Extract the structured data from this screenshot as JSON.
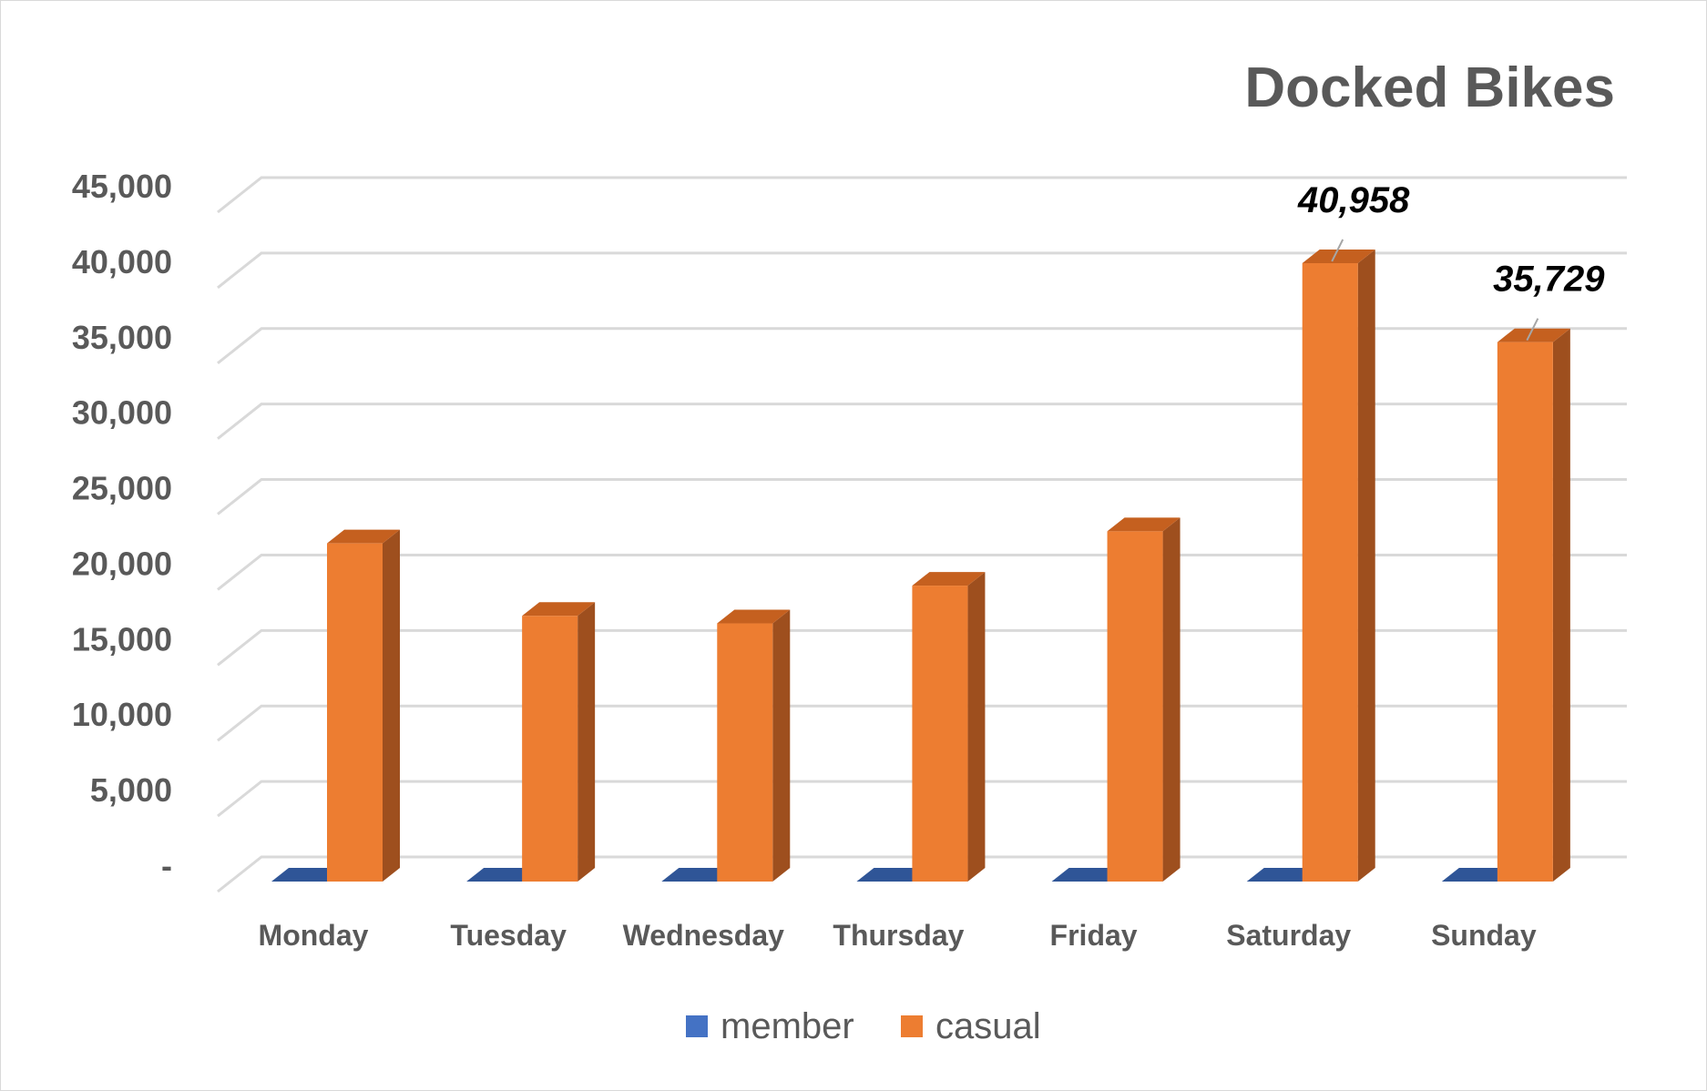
{
  "chart_data": {
    "type": "bar",
    "title": "Docked Bikes",
    "categories": [
      "Monday",
      "Tuesday",
      "Wednesday",
      "Thursday",
      "Friday",
      "Saturday",
      "Sunday"
    ],
    "series": [
      {
        "name": "member",
        "values": [
          0,
          0,
          0,
          0,
          0,
          0,
          0
        ]
      },
      {
        "name": "casual",
        "values": [
          22400,
          17600,
          17100,
          19600,
          23200,
          40958,
          35729
        ]
      }
    ],
    "data_labels": [
      {
        "series": "casual",
        "category": "Saturday",
        "text": "40,958"
      },
      {
        "series": "casual",
        "category": "Sunday",
        "text": "35,729"
      }
    ],
    "ylim": [
      0,
      45000
    ],
    "yticks": [
      0,
      5000,
      10000,
      15000,
      20000,
      25000,
      30000,
      35000,
      40000,
      45000
    ],
    "ytick_labels": [
      "-",
      "5,000",
      "10,000",
      "15,000",
      "20,000",
      "25,000",
      "30,000",
      "35,000",
      "40,000",
      "45,000"
    ],
    "xlabel": "",
    "ylabel": "",
    "grid": true,
    "legend_position": "bottom",
    "style": "3d-column"
  },
  "colors": {
    "member_front": "#4472c4",
    "member_top": "#2f5597",
    "casual_front": "#ed7d31",
    "casual_top": "#c5601f",
    "casual_side": "#9e4f1e",
    "grid": "#d9d9d9",
    "text": "#595959"
  }
}
